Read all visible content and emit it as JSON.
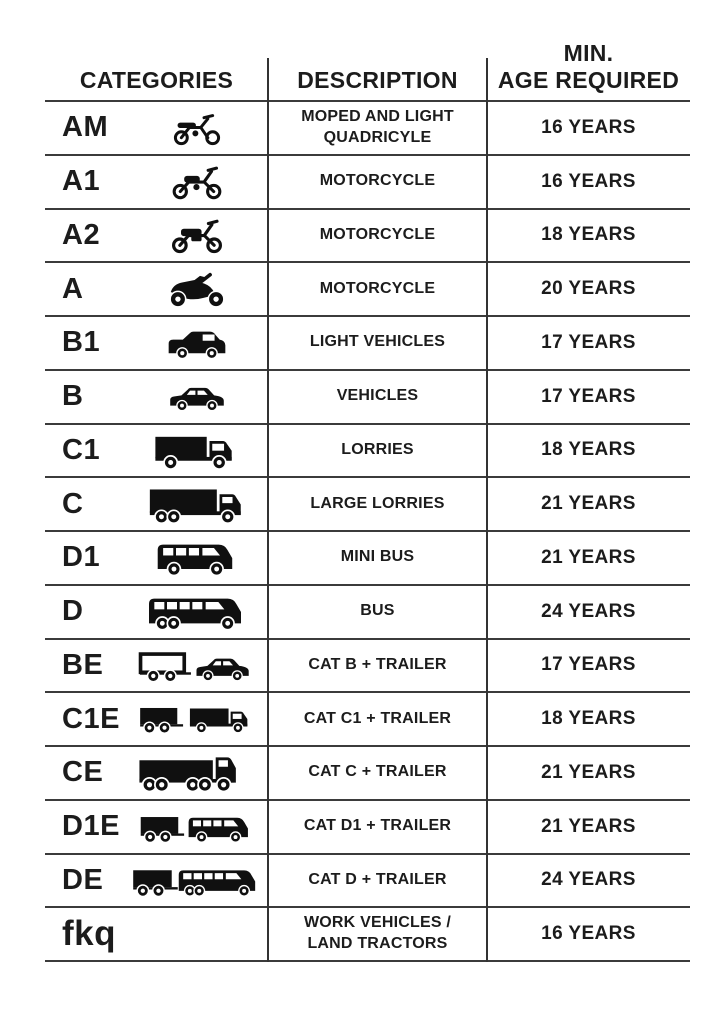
{
  "header": {
    "categories": "CATEGORIES",
    "description": "DESCRIPTION",
    "min_age_line1": "MIN.",
    "min_age_line2": "AGE REQUIRED"
  },
  "rows": [
    {
      "code": "AM",
      "icon": "moped-icon",
      "description": "MOPED AND LIGHT QUADRICYLE",
      "age": "16 YEARS"
    },
    {
      "code": "A1",
      "icon": "light-motorcycle-icon",
      "description": "MOTORCYCLE",
      "age": "16 YEARS"
    },
    {
      "code": "A2",
      "icon": "motorcycle-icon",
      "description": "MOTORCYCLE",
      "age": "18 YEARS"
    },
    {
      "code": "A",
      "icon": "heavy-motorcycle-icon",
      "description": "MOTORCYCLE",
      "age": "20 YEARS"
    },
    {
      "code": "B1",
      "icon": "light-vehicle-icon",
      "description": "LIGHT VEHICLES",
      "age": "17 YEARS"
    },
    {
      "code": "B",
      "icon": "car-icon",
      "description": "VEHICLES",
      "age": "17 YEARS"
    },
    {
      "code": "C1",
      "icon": "lorry-icon",
      "description": "LORRIES",
      "age": "18 YEARS"
    },
    {
      "code": "C",
      "icon": "large-lorry-icon",
      "description": "LARGE LORRIES",
      "age": "21 YEARS"
    },
    {
      "code": "D1",
      "icon": "minibus-icon",
      "description": "MINI BUS",
      "age": "21 YEARS"
    },
    {
      "code": "D",
      "icon": "bus-icon",
      "description": "BUS",
      "age": "24 YEARS"
    },
    {
      "code": "BE",
      "icon": "car-trailer-icon",
      "description": "CAT B + TRAILER",
      "age": "17 YEARS"
    },
    {
      "code": "C1E",
      "icon": "lorry-trailer-icon",
      "description": "CAT C1 + TRAILER",
      "age": "18 YEARS"
    },
    {
      "code": "CE",
      "icon": "articulated-lorry-icon",
      "description": "CAT C + TRAILER",
      "age": "21 YEARS"
    },
    {
      "code": "D1E",
      "icon": "minibus-trailer-icon",
      "description": "CAT D1 + TRAILER",
      "age": "21 YEARS"
    },
    {
      "code": "DE",
      "icon": "bus-trailer-icon",
      "description": "CAT D + TRAILER",
      "age": "24 YEARS"
    },
    {
      "code": "fkq",
      "icon": null,
      "description": "WORK VEHICLES / LAND TRACTORS",
      "age": "16 YEARS"
    }
  ],
  "colors": {
    "background": "#ffffff",
    "text": "#1c1c1c",
    "line": "#3b3b3b",
    "icon": "#101010"
  }
}
